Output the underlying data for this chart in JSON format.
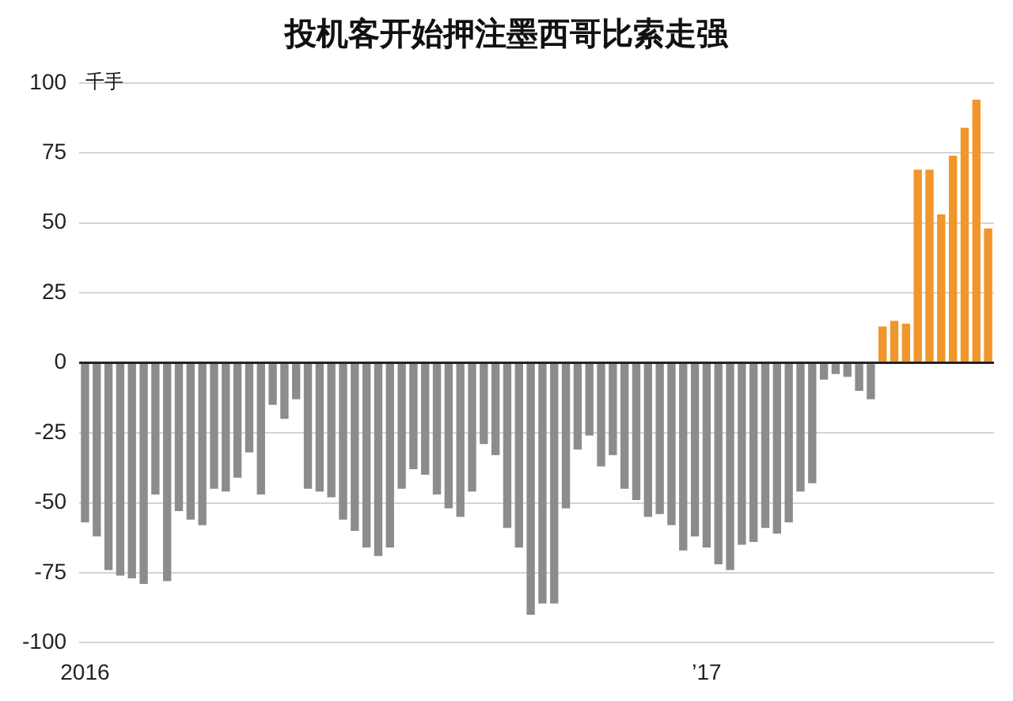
{
  "chart_data": {
    "type": "bar",
    "title": "投机客开始押注墨西哥比索走强",
    "ylabel": "千手",
    "categories": [
      "2016",
      null,
      null,
      null,
      null,
      null,
      null,
      null,
      null,
      null,
      null,
      null,
      null,
      null,
      null,
      null,
      null,
      null,
      null,
      null,
      null,
      null,
      null,
      null,
      null,
      null,
      null,
      null,
      null,
      null,
      null,
      null,
      null,
      null,
      null,
      null,
      null,
      null,
      null,
      null,
      null,
      null,
      null,
      null,
      null,
      null,
      null,
      null,
      null,
      null,
      null,
      null,
      null,
      "’17",
      null,
      null,
      null,
      null,
      null,
      null,
      null,
      null,
      null,
      null,
      null,
      null,
      null,
      null,
      null,
      null,
      null,
      null,
      null,
      null,
      null,
      null,
      null,
      null
    ],
    "values": [
      -57,
      -62,
      -74,
      -76,
      -77,
      -79,
      -47,
      -78,
      -53,
      -56,
      -58,
      -45,
      -46,
      -41,
      -32,
      -47,
      -15,
      -20,
      -13,
      -45,
      -46,
      -48,
      -56,
      -60,
      -66,
      -69,
      -66,
      -45,
      -38,
      -40,
      -47,
      -52,
      -55,
      -46,
      -29,
      -33,
      -59,
      -66,
      -90,
      -86,
      -86,
      -52,
      -31,
      -26,
      -37,
      -33,
      -45,
      -49,
      -55,
      -54,
      -58,
      -67,
      -62,
      -66,
      -72,
      -74,
      -65,
      -64,
      -59,
      -61,
      -57,
      -46,
      -43,
      -6,
      -4,
      -5,
      -10,
      -13,
      13,
      15,
      14,
      69,
      69,
      53,
      74,
      84,
      94,
      48
    ],
    "colors": [
      "#8c8c8c",
      "#8c8c8c",
      "#8c8c8c",
      "#8c8c8c",
      "#8c8c8c",
      "#8c8c8c",
      "#8c8c8c",
      "#8c8c8c",
      "#8c8c8c",
      "#8c8c8c",
      "#8c8c8c",
      "#8c8c8c",
      "#8c8c8c",
      "#8c8c8c",
      "#8c8c8c",
      "#8c8c8c",
      "#8c8c8c",
      "#8c8c8c",
      "#8c8c8c",
      "#8c8c8c",
      "#8c8c8c",
      "#8c8c8c",
      "#8c8c8c",
      "#8c8c8c",
      "#8c8c8c",
      "#8c8c8c",
      "#8c8c8c",
      "#8c8c8c",
      "#8c8c8c",
      "#8c8c8c",
      "#8c8c8c",
      "#8c8c8c",
      "#8c8c8c",
      "#8c8c8c",
      "#8c8c8c",
      "#8c8c8c",
      "#8c8c8c",
      "#8c8c8c",
      "#8c8c8c",
      "#8c8c8c",
      "#8c8c8c",
      "#8c8c8c",
      "#8c8c8c",
      "#8c8c8c",
      "#8c8c8c",
      "#8c8c8c",
      "#8c8c8c",
      "#8c8c8c",
      "#8c8c8c",
      "#8c8c8c",
      "#8c8c8c",
      "#8c8c8c",
      "#8c8c8c",
      "#8c8c8c",
      "#8c8c8c",
      "#8c8c8c",
      "#8c8c8c",
      "#8c8c8c",
      "#8c8c8c",
      "#8c8c8c",
      "#8c8c8c",
      "#8c8c8c",
      "#8c8c8c",
      "#8c8c8c",
      "#8c8c8c",
      "#8c8c8c",
      "#8c8c8c",
      "#8c8c8c",
      "#f0962a",
      "#f0962a",
      "#f0962a",
      "#f0962a",
      "#f0962a",
      "#f0962a",
      "#f0962a",
      "#f0962a",
      "#f0962a",
      "#f0962a"
    ],
    "ylim": [
      -100,
      100
    ],
    "yticks": [
      -100,
      -75,
      -50,
      -25,
      0,
      25,
      50,
      75,
      100
    ],
    "grid": "y",
    "legend": false
  }
}
